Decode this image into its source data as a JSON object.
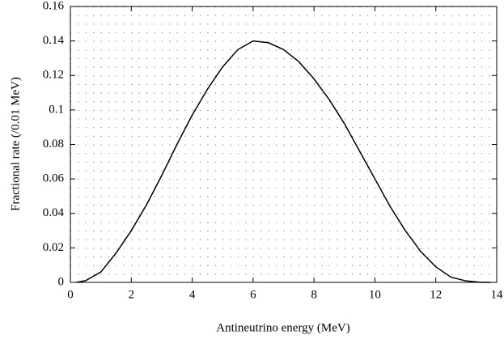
{
  "chart_data": {
    "type": "line",
    "x_label": "Antineutrino energy (MeV)",
    "y_label": "Fractional rate (/0.01 MeV)",
    "x": [
      0.2,
      0.5,
      1,
      1.5,
      2,
      2.5,
      3,
      3.5,
      4,
      4.5,
      5,
      5.5,
      6,
      6.5,
      7,
      7.5,
      8,
      8.5,
      9,
      9.5,
      10,
      10.5,
      11,
      11.5,
      12,
      12.5,
      13,
      13.5,
      13.8
    ],
    "series": [
      {
        "color": "#000000",
        "values": [
          0,
          0.001,
          0.006,
          0.017,
          0.03,
          0.045,
          0.062,
          0.08,
          0.097,
          0.112,
          0.125,
          0.135,
          0.14,
          0.139,
          0.135,
          0.128,
          0.118,
          0.106,
          0.092,
          0.076,
          0.06,
          0.044,
          0.03,
          0.018,
          0.009,
          0.003,
          0.0008,
          0,
          0
        ]
      }
    ],
    "xlim": [
      0,
      14
    ],
    "xticks": [
      0,
      2,
      4,
      6,
      8,
      10,
      12,
      14
    ],
    "ylim": [
      0,
      0.16
    ],
    "yticks": [
      0,
      0.02,
      0.04,
      0.06,
      0.08,
      0.1,
      0.12,
      0.14,
      0.16
    ],
    "grid": true
  }
}
